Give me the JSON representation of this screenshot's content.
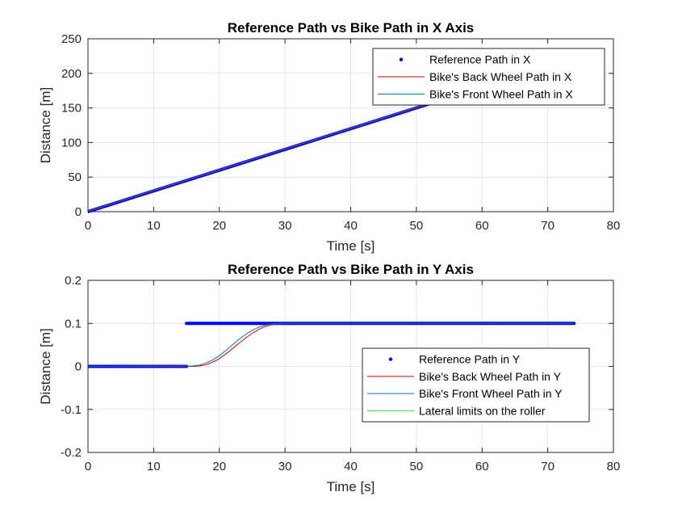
{
  "chart_data": [
    {
      "type": "line",
      "title": "Reference Path vs Bike Path in X Axis",
      "xlabel": "Time [s]",
      "ylabel": "Distance [m]",
      "xlim": [
        0,
        80
      ],
      "ylim": [
        0,
        250
      ],
      "xticks": [
        "0",
        "10",
        "20",
        "30",
        "40",
        "50",
        "60",
        "70",
        "80"
      ],
      "yticks": [
        "0",
        "50",
        "100",
        "150",
        "200",
        "250"
      ],
      "grid": true,
      "legend_position": "top-right",
      "series": [
        {
          "name": "Reference Path in X",
          "style": "dots",
          "color": "#0000ff",
          "x": [
            0,
            74
          ],
          "y": [
            0,
            222
          ]
        },
        {
          "name": "Bike's Back Wheel Path in X",
          "style": "line",
          "color": "#cc0000",
          "x": [
            0,
            74
          ],
          "y": [
            0,
            222
          ]
        },
        {
          "name": "Bike's Front Wheel Path in X",
          "style": "line",
          "color": "#0072bd",
          "x": [
            0,
            74
          ],
          "y": [
            0.5,
            223
          ]
        }
      ]
    },
    {
      "type": "line",
      "title": "Reference Path vs Bike Path in Y Axis",
      "xlabel": "Time [s]",
      "ylabel": "Distance [m]",
      "xlim": [
        0,
        80
      ],
      "ylim": [
        -0.2,
        0.2
      ],
      "xticks": [
        "0",
        "10",
        "20",
        "30",
        "40",
        "50",
        "60",
        "70",
        "80"
      ],
      "yticks": [
        "-0.2",
        "-0.1",
        "0",
        "0.1",
        "0.2"
      ],
      "grid": true,
      "legend_position": "lower-right",
      "series": [
        {
          "name": "Reference Path in Y",
          "style": "dots",
          "color": "#0000ff",
          "segments": [
            {
              "x": [
                0,
                15
              ],
              "y": [
                0,
                0
              ]
            },
            {
              "x": [
                15,
                74
              ],
              "y": [
                0.1,
                0.1
              ]
            }
          ]
        },
        {
          "name": "Bike's Back Wheel Path in Y",
          "style": "line",
          "color": "#cc0000",
          "x": [
            0,
            16,
            17,
            18,
            19,
            20,
            21,
            22,
            23,
            24,
            25,
            26,
            27,
            28,
            29,
            30,
            32,
            74
          ],
          "y": [
            0,
            0,
            0.001,
            0.004,
            0.01,
            0.018,
            0.029,
            0.041,
            0.054,
            0.066,
            0.077,
            0.086,
            0.093,
            0.097,
            0.099,
            0.1,
            0.1,
            0.1
          ]
        },
        {
          "name": "Bike's Front Wheel Path in Y",
          "style": "line",
          "color": "#0072bd",
          "x": [
            0,
            16,
            17,
            18,
            19,
            20,
            21,
            22,
            23,
            24,
            25,
            26,
            27,
            28,
            29,
            30,
            32,
            74
          ],
          "y": [
            0,
            0.001,
            0.003,
            0.008,
            0.015,
            0.025,
            0.037,
            0.05,
            0.063,
            0.074,
            0.084,
            0.091,
            0.096,
            0.099,
            0.1,
            0.1,
            0.1,
            0.1
          ]
        },
        {
          "name": "Lateral limits on the roller",
          "style": "line",
          "color": "#33cc33",
          "segments": [
            {
              "x": [
                0,
                74
              ],
              "y": [
                0.2,
                0.2
              ]
            },
            {
              "x": [
                0,
                74
              ],
              "y": [
                -0.2,
                -0.2
              ]
            }
          ]
        }
      ]
    }
  ]
}
